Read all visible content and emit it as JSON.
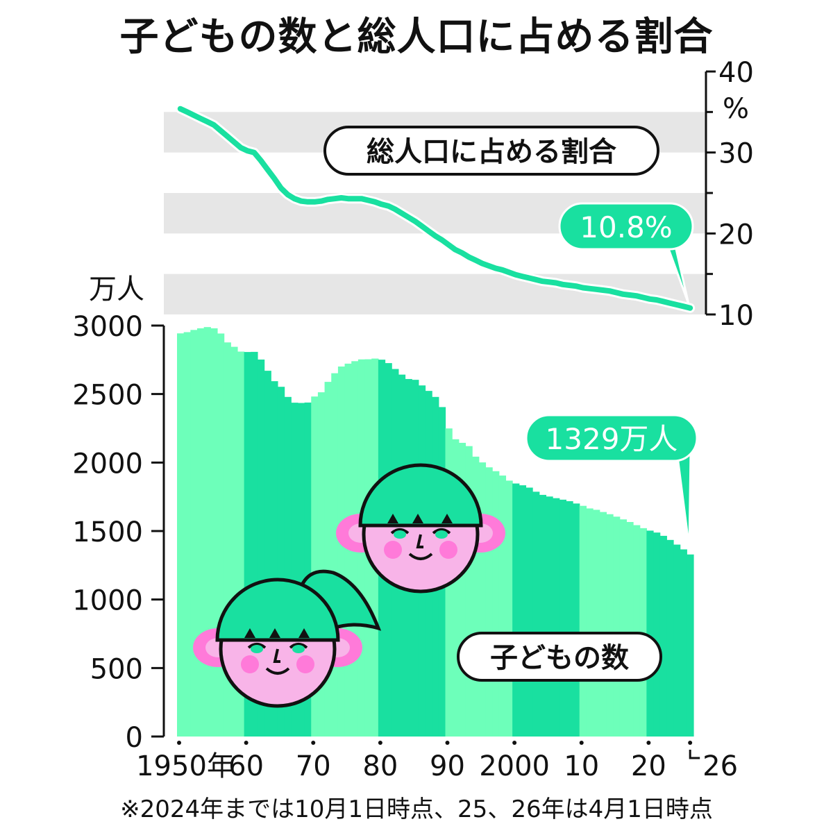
{
  "title": "子どもの数と総人口に占める割合",
  "footnote": "※2024年までは10月1日時点、25、26年は4月1日時点",
  "colors": {
    "line": "#19e0a0",
    "bar_dark": "#19e0a0",
    "bar_light": "#6dffba",
    "band": "#e6e6e6",
    "callout": "#19e0a0",
    "face": "#f8b4e8",
    "ear": "#ff7ad9",
    "hair": "#19e0a0"
  },
  "chart_data": [
    {
      "type": "line",
      "label": "総人口に占める割合",
      "ylabel": "%",
      "ylim": [
        10,
        40
      ],
      "yticks": [
        "10",
        "20",
        "30",
        "40"
      ],
      "grid": "alternating horizontal bands",
      "x": [
        1950,
        1951,
        1952,
        1953,
        1954,
        1955,
        1956,
        1957,
        1958,
        1959,
        1960,
        1961,
        1962,
        1963,
        1964,
        1965,
        1966,
        1967,
        1968,
        1969,
        1970,
        1971,
        1972,
        1973,
        1974,
        1975,
        1976,
        1977,
        1978,
        1979,
        1980,
        1981,
        1982,
        1983,
        1984,
        1985,
        1986,
        1987,
        1988,
        1989,
        1990,
        1991,
        1992,
        1993,
        1994,
        1995,
        1996,
        1997,
        1998,
        1999,
        2000,
        2001,
        2002,
        2003,
        2004,
        2005,
        2006,
        2007,
        2008,
        2009,
        2010,
        2011,
        2012,
        2013,
        2014,
        2015,
        2016,
        2017,
        2018,
        2019,
        2020,
        2021,
        2022,
        2023,
        2024,
        2025,
        2026
      ],
      "y": [
        35.4,
        35.0,
        34.6,
        34.2,
        33.8,
        33.4,
        32.7,
        32.0,
        31.3,
        30.6,
        30.2,
        30.0,
        29.0,
        27.9,
        26.8,
        25.6,
        24.8,
        24.3,
        24.0,
        23.9,
        23.9,
        24.0,
        24.2,
        24.3,
        24.4,
        24.3,
        24.3,
        24.3,
        24.1,
        23.9,
        23.6,
        23.4,
        23.0,
        22.5,
        22.0,
        21.5,
        20.9,
        20.3,
        19.7,
        19.2,
        18.6,
        18.0,
        17.6,
        17.1,
        16.7,
        16.3,
        16.0,
        15.7,
        15.5,
        15.2,
        14.9,
        14.7,
        14.5,
        14.3,
        14.1,
        14.0,
        13.9,
        13.7,
        13.6,
        13.5,
        13.3,
        13.2,
        13.1,
        13.0,
        12.9,
        12.7,
        12.5,
        12.4,
        12.3,
        12.1,
        11.9,
        11.8,
        11.6,
        11.4,
        11.2,
        11.0,
        10.8
      ],
      "annotation": "10.8%"
    },
    {
      "type": "bar",
      "label": "子どもの数",
      "ylabel": "万人",
      "ylim": [
        0,
        3000
      ],
      "yticks": [
        "0",
        "500",
        "1000",
        "1500",
        "2000",
        "2500",
        "3000"
      ],
      "xticks": [
        "1950年",
        "60",
        "70",
        "80",
        "90",
        "2000",
        "10",
        "20",
        "26"
      ],
      "x": [
        1950,
        1951,
        1952,
        1953,
        1954,
        1955,
        1956,
        1957,
        1958,
        1959,
        1960,
        1961,
        1962,
        1963,
        1964,
        1965,
        1966,
        1967,
        1968,
        1969,
        1970,
        1971,
        1972,
        1973,
        1974,
        1975,
        1976,
        1977,
        1978,
        1979,
        1980,
        1981,
        1982,
        1983,
        1984,
        1985,
        1986,
        1987,
        1988,
        1989,
        1990,
        1991,
        1992,
        1993,
        1994,
        1995,
        1996,
        1997,
        1998,
        1999,
        2000,
        2001,
        2002,
        2003,
        2004,
        2005,
        2006,
        2007,
        2008,
        2009,
        2010,
        2011,
        2012,
        2013,
        2014,
        2015,
        2016,
        2017,
        2018,
        2019,
        2020,
        2021,
        2022,
        2023,
        2024,
        2025,
        2026
      ],
      "values": [
        2943,
        2952,
        2968,
        2980,
        2989,
        2980,
        2942,
        2877,
        2845,
        2810,
        2807,
        2808,
        2752,
        2670,
        2594,
        2553,
        2479,
        2437,
        2435,
        2438,
        2482,
        2513,
        2589,
        2652,
        2701,
        2722,
        2740,
        2753,
        2754,
        2759,
        2751,
        2726,
        2683,
        2642,
        2610,
        2604,
        2563,
        2523,
        2479,
        2405,
        2249,
        2170,
        2144,
        2120,
        2043,
        2001,
        1965,
        1937,
        1905,
        1868,
        1847,
        1834,
        1817,
        1787,
        1764,
        1752,
        1740,
        1729,
        1718,
        1701,
        1684,
        1665,
        1655,
        1639,
        1623,
        1605,
        1585,
        1566,
        1543,
        1521,
        1503,
        1489,
        1465,
        1435,
        1401,
        1366,
        1329
      ],
      "annotation": "1329万人"
    }
  ],
  "labels": {
    "pct_unit": "%",
    "bar_unit": "万人",
    "line_label": "総人口に占める割合",
    "bar_label": "子どもの数"
  }
}
